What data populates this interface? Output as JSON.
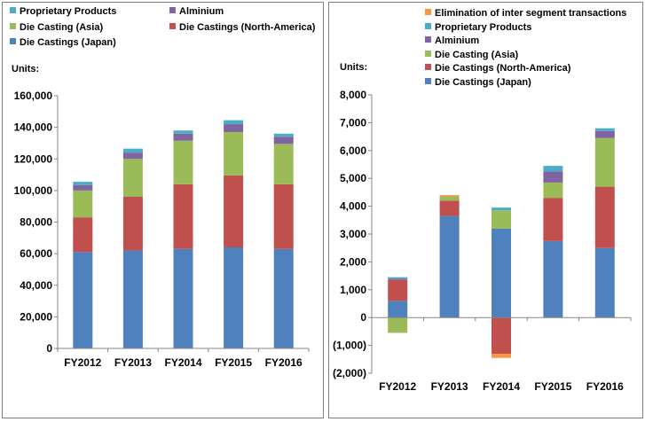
{
  "chart_data": [
    {
      "type": "bar",
      "stacked": true,
      "title": "",
      "units_label": "Units:",
      "categories": [
        "FY2012",
        "FY2013",
        "FY2014",
        "FY2015",
        "FY2016"
      ],
      "ylim": [
        0,
        160000
      ],
      "yticks": [
        0,
        20000,
        40000,
        60000,
        80000,
        100000,
        120000,
        140000,
        160000
      ],
      "ytick_labels": [
        "0",
        "20,000",
        "40,000",
        "60,000",
        "80,000",
        "100,000",
        "120,000",
        "140,000",
        "160,000"
      ],
      "series": [
        {
          "name": "Die Castings (Japan)",
          "color": "#4F81BD",
          "values": [
            61000,
            62000,
            63000,
            64000,
            63000
          ]
        },
        {
          "name": "Die Castings (North-America)",
          "color": "#C0504D",
          "values": [
            22000,
            34000,
            41000,
            45500,
            41000
          ]
        },
        {
          "name": "Die Casting (Asia)",
          "color": "#9BBB59",
          "values": [
            17000,
            24000,
            27500,
            27500,
            25500
          ]
        },
        {
          "name": "Alminium",
          "color": "#8064A2",
          "values": [
            3500,
            4000,
            4500,
            5000,
            4500
          ]
        },
        {
          "name": "Proprietary Products",
          "color": "#4BACC6",
          "values": [
            2000,
            2500,
            2000,
            2500,
            2000
          ]
        }
      ],
      "legend": [
        {
          "name": "Proprietary Products",
          "color": "#4BACC6"
        },
        {
          "name": "Alminium",
          "color": "#8064A2"
        },
        {
          "name": "Die Casting (Asia)",
          "color": "#9BBB59"
        },
        {
          "name": "Die Castings (North-America)",
          "color": "#C0504D"
        },
        {
          "name": "Die Castings (Japan)",
          "color": "#4F81BD"
        }
      ]
    },
    {
      "type": "bar",
      "stacked": true,
      "title": "",
      "units_label": "Units:",
      "categories": [
        "FY2012",
        "FY2013",
        "FY2014",
        "FY2015",
        "FY2016"
      ],
      "ylim": [
        -2000,
        8000
      ],
      "yticks": [
        -2000,
        -1000,
        0,
        1000,
        2000,
        3000,
        4000,
        5000,
        6000,
        7000,
        8000
      ],
      "ytick_labels": [
        "(2,000)",
        "(1,000)",
        "0",
        "1,000",
        "2,000",
        "3,000",
        "4,000",
        "5,000",
        "6,000",
        "7,000",
        "8,000"
      ],
      "series": [
        {
          "name": "Die Castings (Japan)",
          "color": "#4F81BD",
          "values": [
            600,
            3650,
            3200,
            2750,
            2500
          ]
        },
        {
          "name": "Die Castings (North-America)",
          "color": "#C0504D",
          "values": [
            750,
            550,
            -1300,
            1550,
            2200
          ]
        },
        {
          "name": "Die Casting (Asia)",
          "color": "#9BBB59",
          "values": [
            -550,
            150,
            650,
            550,
            1750
          ]
        },
        {
          "name": "Alminium",
          "color": "#8064A2",
          "values": [
            50,
            0,
            0,
            400,
            250
          ]
        },
        {
          "name": "Proprietary Products",
          "color": "#4BACC6",
          "values": [
            50,
            0,
            100,
            200,
            100
          ]
        },
        {
          "name": "Elimination of inter segment transactions",
          "color": "#F79646",
          "values": [
            0,
            50,
            -150,
            0,
            0
          ]
        }
      ],
      "legend": [
        {
          "name": "Elimination of inter segment transactions",
          "color": "#F79646"
        },
        {
          "name": "Proprietary Products",
          "color": "#4BACC6"
        },
        {
          "name": "Alminium",
          "color": "#8064A2"
        },
        {
          "name": "Die Casting (Asia)",
          "color": "#9BBB59"
        },
        {
          "name": "Die Castings (North-America)",
          "color": "#C0504D"
        },
        {
          "name": "Die Castings (Japan)",
          "color": "#4F81BD"
        }
      ]
    }
  ]
}
